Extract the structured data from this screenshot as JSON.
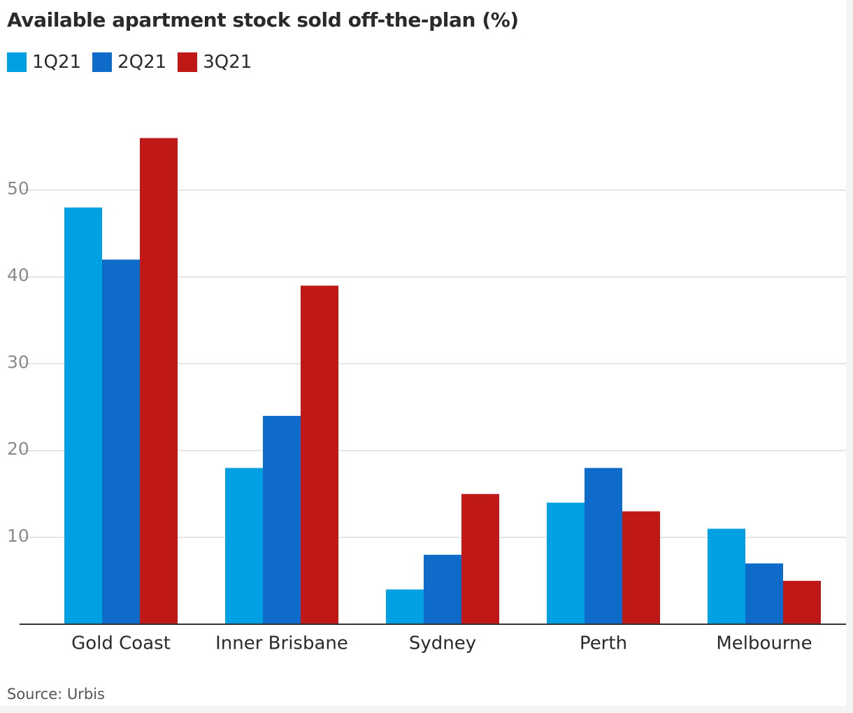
{
  "title": "Available apartment stock sold off-the-plan (%)",
  "source": "Source: Urbis",
  "chart_data": {
    "type": "bar",
    "title": "Available apartment stock sold off-the-plan (%)",
    "xlabel": "",
    "ylabel": "",
    "categories": [
      "Gold Coast",
      "Inner Brisbane",
      "Sydney",
      "Perth",
      "Melbourne"
    ],
    "series": [
      {
        "name": "1Q21",
        "color": "#00a0e3",
        "values": [
          48,
          18,
          4,
          14,
          11
        ]
      },
      {
        "name": "2Q21",
        "color": "#0f6bc9",
        "values": [
          42,
          24,
          8,
          18,
          7
        ]
      },
      {
        "name": "3Q21",
        "color": "#c01717",
        "values": [
          56,
          39,
          15,
          13,
          5
        ]
      }
    ],
    "yticks": [
      10,
      20,
      30,
      40,
      50
    ],
    "ylim": [
      0,
      60
    ],
    "grid": true,
    "legend": "top-left"
  }
}
